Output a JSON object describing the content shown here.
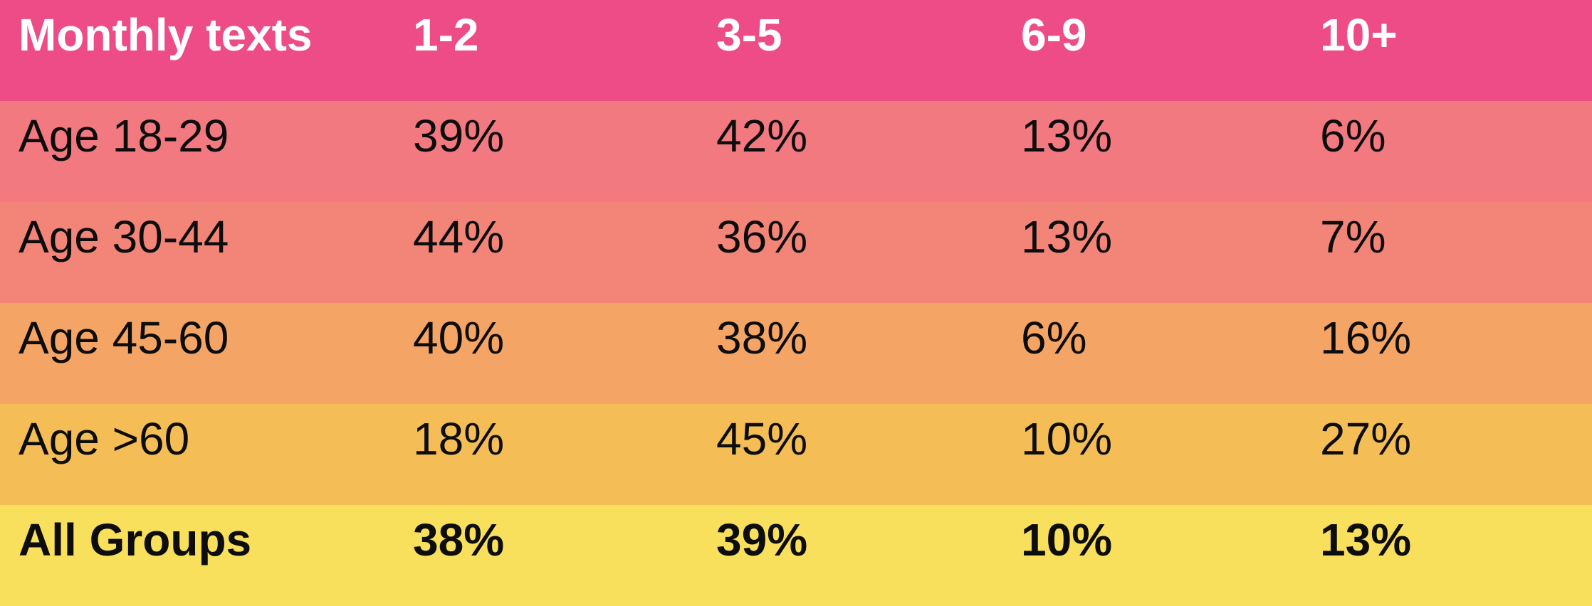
{
  "chart_data": {
    "type": "table",
    "title": "Monthly texts",
    "columns": [
      "Monthly texts",
      "1-2",
      "3-5",
      "6-9",
      "10+"
    ],
    "rows": [
      [
        "Age 18-29",
        "39%",
        "42%",
        "13%",
        "6%"
      ],
      [
        "Age 30-44",
        "44%",
        "36%",
        "13%",
        "7%"
      ],
      [
        "Age 45-60",
        "40%",
        "38%",
        "6%",
        "16%"
      ],
      [
        "Age >60",
        "18%",
        "45%",
        "10%",
        "27%"
      ],
      [
        "All Groups",
        "38%",
        "39%",
        "10%",
        "13%"
      ]
    ],
    "layout_hints": {
      "grid": "white vertical dividers only, no horizontal borders",
      "last_row_bold": true,
      "header_bold": true
    }
  },
  "colors": {
    "header_bg": "#EE4C87",
    "row_bgs": [
      "#F1797F",
      "#F28478",
      "#F4A464",
      "#F5BD55",
      "#F8DF5C"
    ],
    "divider": "#FFFFFF",
    "header_text": "#FFFFFF",
    "body_text": "#0D0D0D"
  }
}
